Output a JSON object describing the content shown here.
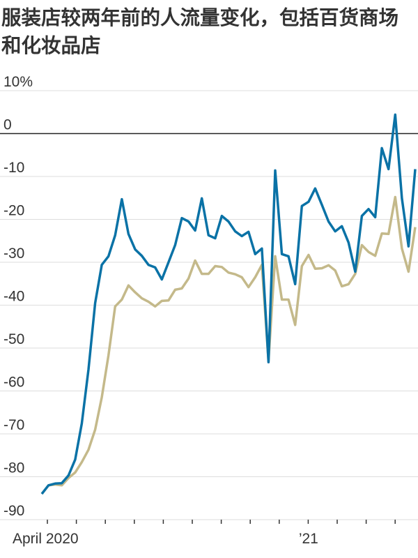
{
  "chart_data": {
    "type": "line",
    "title": "服装店较两年前的人流量变化，包括百货商场和化妆品店",
    "categories": [
      null,
      "April 2020",
      null,
      null,
      null,
      null,
      null,
      null,
      null,
      null,
      null,
      null,
      null,
      null,
      null,
      null,
      null,
      null,
      null,
      null,
      null,
      null,
      null,
      null,
      null,
      null,
      null,
      null,
      null,
      null,
      null,
      null,
      null,
      null,
      null,
      null,
      null,
      null,
      null,
      null,
      "’21",
      null,
      null,
      null,
      null,
      null,
      null,
      null,
      null,
      null,
      null,
      null,
      null,
      null,
      null,
      null,
      null
    ],
    "series": [
      {
        "color": "#0a72a6",
        "values": [
          -84,
          -82,
          -81.6,
          -81.5,
          -79.7,
          -76,
          -67.6,
          -55,
          -39.5,
          -30.6,
          -28.6,
          -23.7,
          -15.3,
          -23.4,
          -27,
          -28.5,
          -30.6,
          -31.2,
          -34,
          -30,
          -26,
          -19.7,
          -20.5,
          -22.6,
          -15.1,
          -23.7,
          -24.4,
          -19.2,
          -20.5,
          -22.8,
          -23.9,
          -22.9,
          -28.1,
          -26.8,
          -53.3,
          -8.6,
          -28.1,
          -28.6,
          -35.1,
          -16.9,
          -15.9,
          -12.8,
          -16.6,
          -20.5,
          -22.8,
          -21.6,
          -25.4,
          -32.2,
          -19.2,
          -17.6,
          -19.5,
          -3.4,
          -8.3,
          4.4,
          -15.1,
          -26.3,
          -8.3
        ]
      },
      {
        "color": "#c4b98a",
        "values": [
          -84,
          -82,
          -81.8,
          -82,
          -80.3,
          -79,
          -76.6,
          -73.7,
          -69,
          -61.5,
          -51.7,
          -40.3,
          -38.7,
          -35.4,
          -37,
          -38.4,
          -39.2,
          -40.3,
          -39,
          -38.9,
          -36.4,
          -36.1,
          -33.8,
          -29.6,
          -32.7,
          -32.7,
          -30.9,
          -31.1,
          -32.4,
          -32.8,
          -33.5,
          -35.8,
          -33.5,
          -30.6,
          -53,
          -28.6,
          -38.7,
          -38.7,
          -44.6,
          -30.9,
          -28.3,
          -31.5,
          -31.4,
          -30.7,
          -31.9,
          -35.6,
          -35.1,
          -32.7,
          -26,
          -27.6,
          -28.5,
          -23.3,
          -23.4,
          -14.8,
          -26.8,
          -32.2,
          -21.8
        ]
      }
    ],
    "ylim": [
      -90,
      10
    ],
    "yticks": [
      {
        "value": 10,
        "label": "10%"
      },
      0,
      -10,
      -20,
      -30,
      -40,
      -50,
      -60,
      -70,
      -80,
      -90
    ],
    "grid": true
  }
}
